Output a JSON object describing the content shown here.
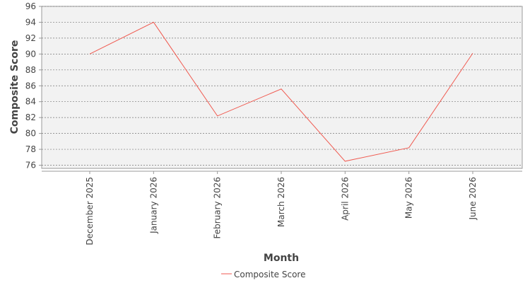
{
  "chart_data": {
    "type": "line",
    "x_label": "Month",
    "y_label": "Composite Score",
    "categories": [
      "December 2025",
      "January 2026",
      "February 2026",
      "March 2026",
      "April 2026",
      "May 2026",
      "June 2026"
    ],
    "series": [
      {
        "name": "Composite Score",
        "color": "#f05a50",
        "values": [
          90.0,
          94.0,
          82.2,
          85.6,
          76.5,
          78.2,
          90.1
        ]
      }
    ],
    "ylim": [
      75.6,
      96
    ],
    "yticks": [
      76,
      78,
      80,
      82,
      84,
      86,
      88,
      90,
      92,
      94,
      96
    ],
    "grid": true,
    "legend": "bottom"
  }
}
